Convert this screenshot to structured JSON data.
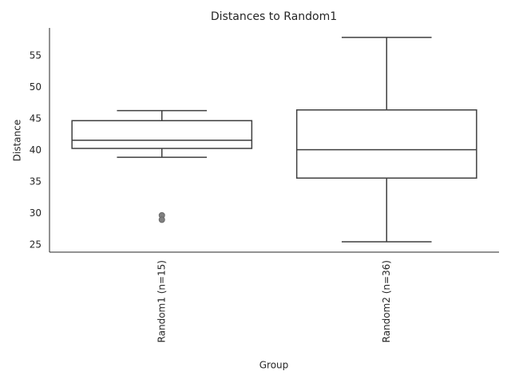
{
  "chart_data": {
    "type": "box",
    "title": "Distances to Random1",
    "xlabel": "Group",
    "ylabel": "Distance",
    "categories": [
      "Random1 (n=15)",
      "Random2 (n=36)"
    ],
    "boxes": [
      {
        "min": 38.9,
        "q1": 40.3,
        "median": 41.6,
        "q3": 44.7,
        "max": 46.3,
        "outliers": [
          29.7,
          29.0
        ]
      },
      {
        "min": 25.5,
        "q1": 35.6,
        "median": 40.1,
        "q3": 46.4,
        "max": 57.9,
        "outliers": []
      }
    ],
    "color": "#3f3f3f",
    "fill": "#ffffff",
    "ylim": [
      23.86,
      59.4
    ],
    "yticks": [
      25,
      30,
      35,
      40,
      45,
      50,
      55
    ]
  }
}
